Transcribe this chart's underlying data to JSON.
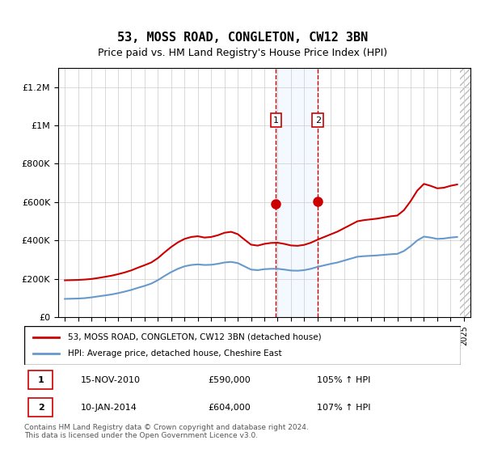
{
  "title": "53, MOSS ROAD, CONGLETON, CW12 3BN",
  "subtitle": "Price paid vs. HM Land Registry's House Price Index (HPI)",
  "footer": "Contains HM Land Registry data © Crown copyright and database right 2024.\nThis data is licensed under the Open Government Licence v3.0.",
  "legend_line1": "53, MOSS ROAD, CONGLETON, CW12 3BN (detached house)",
  "legend_line2": "HPI: Average price, detached house, Cheshire East",
  "transaction1_label": "1",
  "transaction1_date": "15-NOV-2010",
  "transaction1_price": "£590,000",
  "transaction1_hpi": "105% ↑ HPI",
  "transaction2_label": "2",
  "transaction2_date": "10-JAN-2014",
  "transaction2_price": "£604,000",
  "transaction2_hpi": "107% ↑ HPI",
  "red_color": "#cc0000",
  "blue_color": "#6699cc",
  "highlight_color": "#ddeeff",
  "grid_color": "#cccccc",
  "background_color": "#ffffff",
  "hatch_color": "#cccccc",
  "marker1_x": 2010.88,
  "marker1_y": 590000,
  "marker2_x": 2014.03,
  "marker2_y": 604000,
  "ylim_min": 0,
  "ylim_max": 1300000,
  "xlim_min": 1994.5,
  "xlim_max": 2025.5,
  "yticks": [
    0,
    200000,
    400000,
    600000,
    800000,
    1000000,
    1200000
  ],
  "ytick_labels": [
    "£0",
    "£200K",
    "£400K",
    "£600K",
    "£800K",
    "£1M",
    "£1.2M"
  ],
  "xticks": [
    1995,
    1996,
    1997,
    1998,
    1999,
    2000,
    2001,
    2002,
    2003,
    2004,
    2005,
    2006,
    2007,
    2008,
    2009,
    2010,
    2011,
    2012,
    2013,
    2014,
    2015,
    2016,
    2017,
    2018,
    2019,
    2020,
    2021,
    2022,
    2023,
    2024,
    2025
  ]
}
